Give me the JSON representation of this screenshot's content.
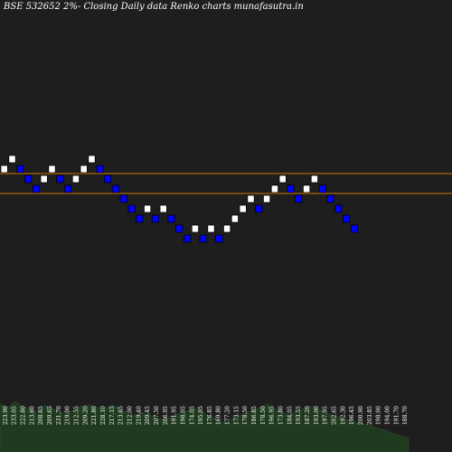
{
  "title": "BSE 532652  2%-  Closing Daily data  Renko  charts munafasutra.in",
  "colors": {
    "background": "#1e1e1e",
    "up_brick": "#ffffff",
    "down_brick": "#0000ff",
    "brick_border": "#000000",
    "level_line": "#cc7a00",
    "volume_fill": "#1f3a1f",
    "label_text": "#ffffff"
  },
  "chart_data": {
    "type": "renko",
    "title": "BSE 532652  2%-  Closing Daily data  Renko  charts munafasutra.in",
    "brick_size_label": "2%",
    "brick_steps": [
      2,
      3,
      2,
      1,
      0,
      1,
      2,
      1,
      0,
      1,
      2,
      3,
      2,
      1,
      0,
      -1,
      -2,
      -3,
      -2,
      -3,
      -2,
      -3,
      -4,
      -5,
      -4,
      -5,
      -4,
      -5,
      -4,
      -3,
      -2,
      -1,
      -2,
      -1,
      0,
      1,
      0,
      -1,
      0,
      1,
      0,
      -1,
      -2,
      -3,
      -4
    ],
    "brick_direction": [
      "up",
      "up",
      "down",
      "down",
      "down",
      "up",
      "up",
      "down",
      "down",
      "up",
      "up",
      "up",
      "down",
      "down",
      "down",
      "down",
      "down",
      "down",
      "up",
      "down",
      "up",
      "down",
      "down",
      "down",
      "up",
      "down",
      "up",
      "down",
      "up",
      "up",
      "up",
      "up",
      "down",
      "up",
      "up",
      "up",
      "down",
      "down",
      "up",
      "up",
      "down",
      "down",
      "down",
      "down",
      "down"
    ],
    "price_labels": [
      "223.90",
      "233.05",
      "222.80",
      "213.60",
      "208.65",
      "209.65",
      "231.70",
      "219.00",
      "212.55",
      "209.20",
      "221.80",
      "228.10",
      "217.15",
      "213.65",
      "212.00",
      "219.40",
      "209.45",
      "207.50",
      "206.95",
      "191.95",
      "198.05",
      "174.05",
      "195.05",
      "176.85",
      "169.80",
      "177.20",
      "173.15",
      "178.50",
      "186.85",
      "178.50",
      "196.95",
      "173.80",
      "184.05",
      "193.55",
      "187.20",
      "193.00",
      "197.95",
      "202.65",
      "192.30",
      "196.45",
      "200.90",
      "203.85",
      "198.00",
      "194.00",
      "191.70",
      "188.70"
    ],
    "levels": [
      {
        "step": 2
      },
      {
        "step": 0
      }
    ],
    "volume": [
      0.78,
      0.72,
      0.82,
      0.75,
      0.7,
      0.64,
      0.76,
      0.71,
      0.66,
      0.62,
      0.69,
      0.74,
      0.77,
      0.73,
      0.7,
      0.76,
      0.72,
      0.64,
      0.59,
      0.65,
      0.61,
      0.55,
      0.52,
      0.58,
      0.62,
      0.66,
      0.71,
      0.67,
      0.6,
      0.54,
      0.48,
      0.52,
      0.58,
      0.63,
      0.68,
      0.72,
      0.78,
      0.7,
      0.64,
      0.61,
      0.66,
      0.71,
      0.74,
      0.69,
      0.63,
      0.58,
      0.55,
      0.51,
      0.48,
      0.45,
      0.42,
      0.38,
      0.35,
      0.3,
      0.26,
      0.22
    ]
  }
}
